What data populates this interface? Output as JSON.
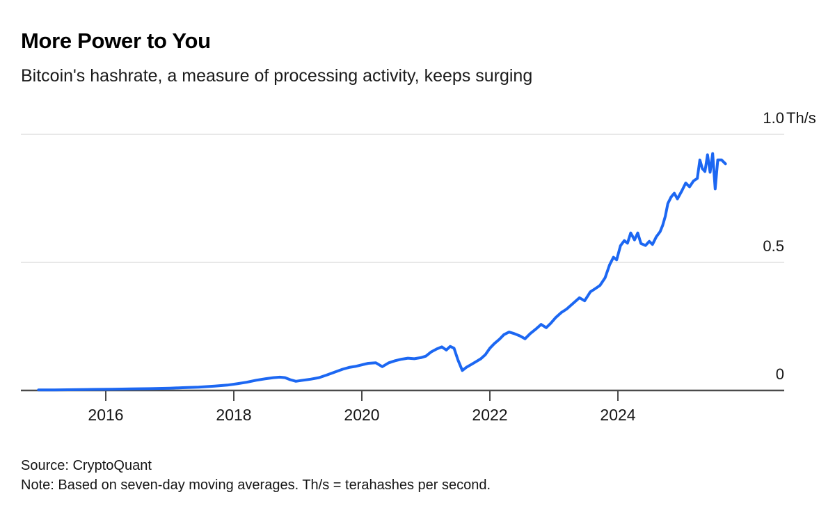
{
  "header": {
    "title": "More Power to You",
    "subtitle": "Bitcoin's hashrate, a measure of processing activity, keeps surging"
  },
  "footer": {
    "source": "Source: CryptoQuant",
    "note": "Note: Based on seven-day moving averages. Th/s = terahashes per second."
  },
  "colors": {
    "line": "#1c67f2",
    "grid": "#e8e8e8",
    "axis": "#4a4a4a",
    "text": "#161616"
  },
  "chart_data": {
    "type": "line",
    "title": "More Power to You",
    "subtitle": "Bitcoin's hashrate, a measure of processing activity, keeps surging",
    "unit": "Th/s",
    "xlabel": "",
    "ylabel": "Th/s",
    "x_range": [
      2014.95,
      2025.68
    ],
    "y_range": [
      0,
      1.0
    ],
    "grid": "horizontal gridlines at 0.5 and 1.0, dark zero baseline",
    "legend": "none",
    "x_ticks": [
      {
        "label": "2016",
        "year": 2016
      },
      {
        "label": "2018",
        "year": 2018
      },
      {
        "label": "2020",
        "year": 2020
      },
      {
        "label": "2022",
        "year": 2022
      },
      {
        "label": "2024",
        "year": 2024
      }
    ],
    "y_ticks": [
      {
        "number": "1.0",
        "unit": "Th/s",
        "value": 1.0
      },
      {
        "number": "0.5",
        "unit": "",
        "value": 0.5
      },
      {
        "number": "0",
        "unit": "",
        "value": 0
      }
    ],
    "series": [
      {
        "name": "Bitcoin hashrate, seven-day moving average (Th/s)",
        "points": [
          [
            2014.95,
            0.002
          ],
          [
            2015.2,
            0.002
          ],
          [
            2015.5,
            0.003
          ],
          [
            2015.8,
            0.004
          ],
          [
            2016.1,
            0.005
          ],
          [
            2016.4,
            0.006
          ],
          [
            2016.7,
            0.007
          ],
          [
            2017.0,
            0.009
          ],
          [
            2017.2,
            0.011
          ],
          [
            2017.45,
            0.013
          ],
          [
            2017.7,
            0.017
          ],
          [
            2017.9,
            0.021
          ],
          [
            2018.05,
            0.026
          ],
          [
            2018.2,
            0.032
          ],
          [
            2018.35,
            0.04
          ],
          [
            2018.5,
            0.046
          ],
          [
            2018.62,
            0.05
          ],
          [
            2018.72,
            0.052
          ],
          [
            2018.8,
            0.05
          ],
          [
            2018.88,
            0.042
          ],
          [
            2018.97,
            0.036
          ],
          [
            2019.08,
            0.04
          ],
          [
            2019.2,
            0.044
          ],
          [
            2019.33,
            0.05
          ],
          [
            2019.45,
            0.06
          ],
          [
            2019.58,
            0.072
          ],
          [
            2019.7,
            0.083
          ],
          [
            2019.8,
            0.09
          ],
          [
            2019.9,
            0.094
          ],
          [
            2020.0,
            0.1
          ],
          [
            2020.1,
            0.106
          ],
          [
            2020.22,
            0.108
          ],
          [
            2020.32,
            0.093
          ],
          [
            2020.42,
            0.108
          ],
          [
            2020.52,
            0.116
          ],
          [
            2020.62,
            0.122
          ],
          [
            2020.72,
            0.126
          ],
          [
            2020.82,
            0.124
          ],
          [
            2020.92,
            0.128
          ],
          [
            2021.0,
            0.134
          ],
          [
            2021.08,
            0.15
          ],
          [
            2021.17,
            0.162
          ],
          [
            2021.25,
            0.17
          ],
          [
            2021.32,
            0.158
          ],
          [
            2021.38,
            0.172
          ],
          [
            2021.44,
            0.165
          ],
          [
            2021.5,
            0.12
          ],
          [
            2021.57,
            0.078
          ],
          [
            2021.63,
            0.09
          ],
          [
            2021.7,
            0.1
          ],
          [
            2021.78,
            0.112
          ],
          [
            2021.86,
            0.124
          ],
          [
            2021.93,
            0.14
          ],
          [
            2022.0,
            0.165
          ],
          [
            2022.07,
            0.183
          ],
          [
            2022.15,
            0.2
          ],
          [
            2022.22,
            0.218
          ],
          [
            2022.3,
            0.228
          ],
          [
            2022.38,
            0.222
          ],
          [
            2022.47,
            0.213
          ],
          [
            2022.55,
            0.202
          ],
          [
            2022.63,
            0.222
          ],
          [
            2022.72,
            0.24
          ],
          [
            2022.8,
            0.258
          ],
          [
            2022.88,
            0.245
          ],
          [
            2022.95,
            0.262
          ],
          [
            2023.03,
            0.285
          ],
          [
            2023.12,
            0.305
          ],
          [
            2023.2,
            0.318
          ],
          [
            2023.3,
            0.34
          ],
          [
            2023.4,
            0.362
          ],
          [
            2023.48,
            0.35
          ],
          [
            2023.57,
            0.385
          ],
          [
            2023.65,
            0.398
          ],
          [
            2023.72,
            0.41
          ],
          [
            2023.8,
            0.44
          ],
          [
            2023.87,
            0.49
          ],
          [
            2023.93,
            0.52
          ],
          [
            2023.98,
            0.51
          ],
          [
            2024.04,
            0.565
          ],
          [
            2024.1,
            0.585
          ],
          [
            2024.15,
            0.575
          ],
          [
            2024.2,
            0.615
          ],
          [
            2024.26,
            0.588
          ],
          [
            2024.31,
            0.615
          ],
          [
            2024.36,
            0.574
          ],
          [
            2024.43,
            0.566
          ],
          [
            2024.49,
            0.582
          ],
          [
            2024.54,
            0.57
          ],
          [
            2024.6,
            0.6
          ],
          [
            2024.66,
            0.62
          ],
          [
            2024.7,
            0.645
          ],
          [
            2024.74,
            0.68
          ],
          [
            2024.78,
            0.73
          ],
          [
            2024.83,
            0.755
          ],
          [
            2024.88,
            0.77
          ],
          [
            2024.93,
            0.748
          ],
          [
            2025.0,
            0.78
          ],
          [
            2025.06,
            0.81
          ],
          [
            2025.12,
            0.795
          ],
          [
            2025.18,
            0.818
          ],
          [
            2025.24,
            0.828
          ],
          [
            2025.28,
            0.9
          ],
          [
            2025.32,
            0.866
          ],
          [
            2025.36,
            0.855
          ],
          [
            2025.4,
            0.92
          ],
          [
            2025.44,
            0.852
          ],
          [
            2025.48,
            0.925
          ],
          [
            2025.52,
            0.787
          ],
          [
            2025.56,
            0.9
          ],
          [
            2025.62,
            0.9
          ],
          [
            2025.68,
            0.885
          ]
        ]
      }
    ]
  }
}
